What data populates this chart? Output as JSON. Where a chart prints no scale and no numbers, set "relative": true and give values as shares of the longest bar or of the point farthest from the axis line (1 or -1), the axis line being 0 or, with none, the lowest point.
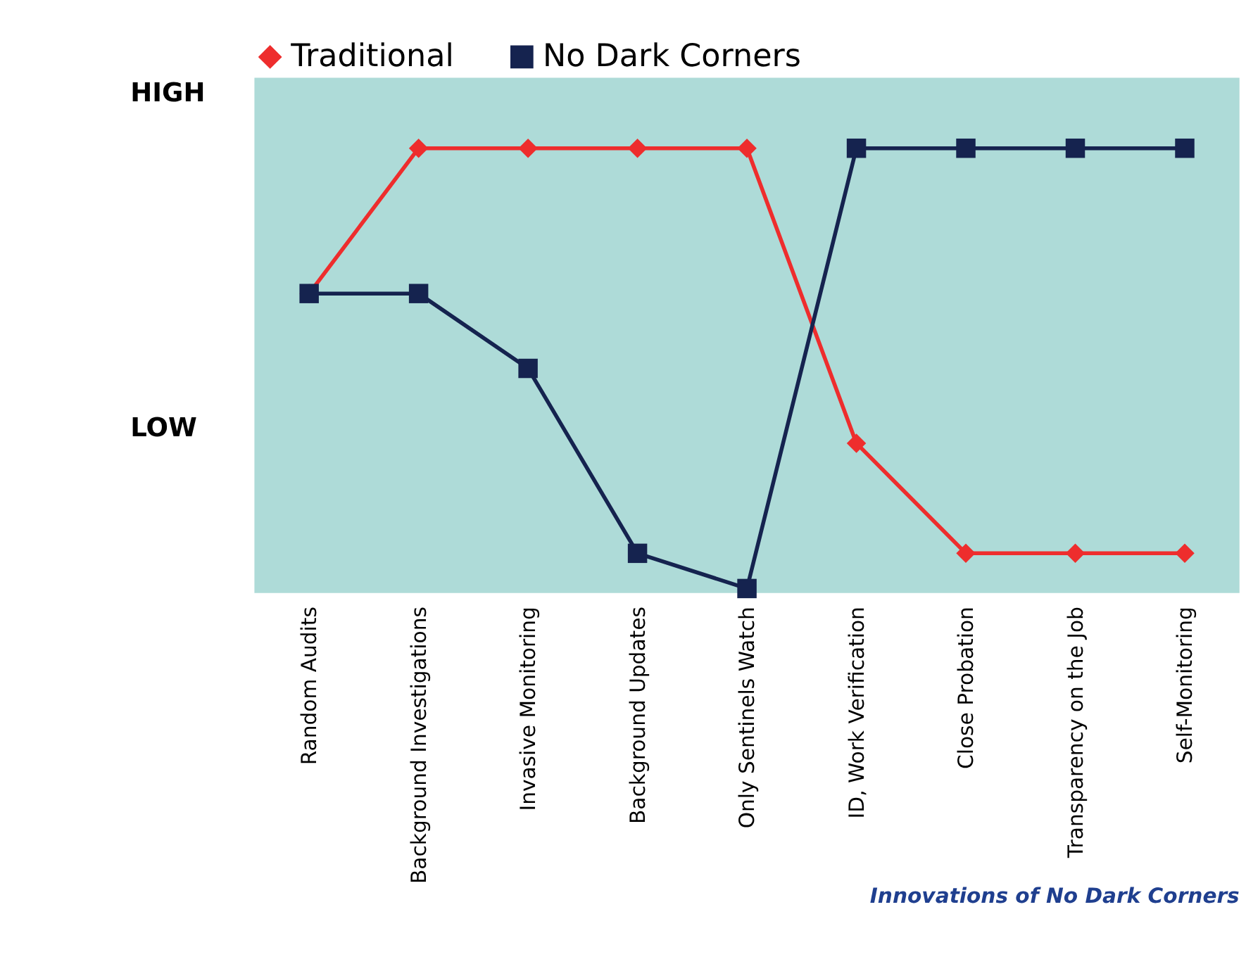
{
  "chart_data": {
    "type": "line",
    "relative": true,
    "categories": [
      "Random Audits",
      "Background Investigations",
      "Invasive Monitoring",
      "Background Updates",
      "Only Sentinels Watch",
      "ID, Work Verification",
      "Close Probation",
      "Transparency on the Job",
      "Self-Monitoring"
    ],
    "series": [
      {
        "name": "Traditional",
        "color": "#ee2d2d",
        "marker": "diamond",
        "values": [
          0.67,
          1,
          1,
          1,
          1,
          0.33,
          0.08,
          0.08,
          0.08
        ]
      },
      {
        "name": "No Dark Corners",
        "color": "#15234f",
        "marker": "square",
        "values": [
          0.67,
          0.67,
          0.5,
          0.08,
          0,
          1,
          1,
          1,
          1
        ]
      }
    ],
    "legend": "top",
    "grid": false,
    "line_style": "solid",
    "annotations": [
      "HIGH",
      "LOW",
      "Innovations of No Dark Corners"
    ]
  }
}
